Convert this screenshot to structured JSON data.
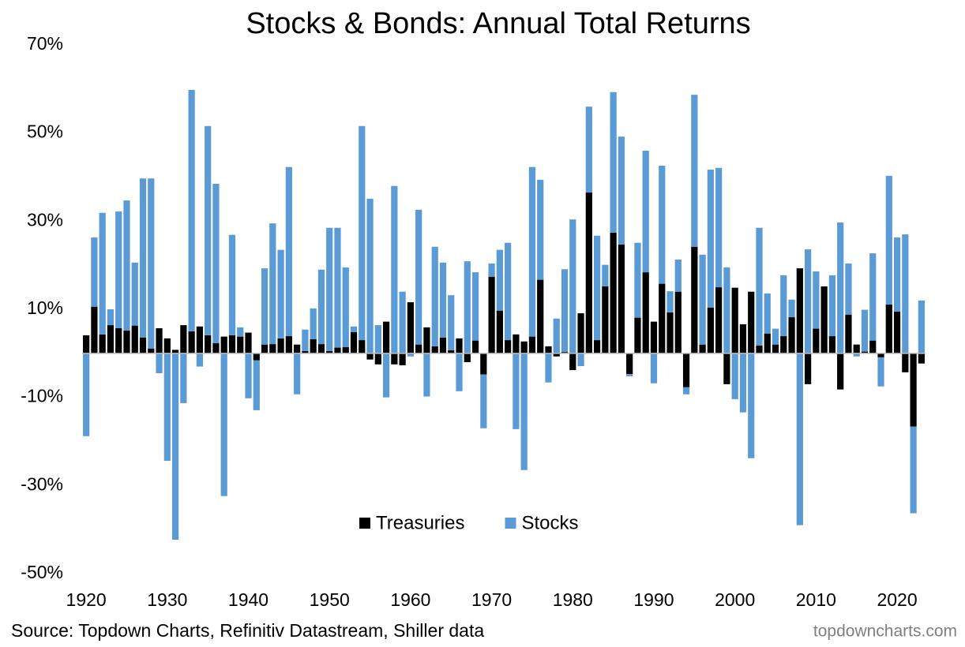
{
  "chart_data": {
    "type": "bar",
    "stacked": true,
    "title": "Stocks & Bonds: Annual Total Returns",
    "source": "Source: Topdown Charts, Refinitiv Datastream, Shiller data",
    "watermark": "topdowncharts.com",
    "x": [
      1920,
      1921,
      1922,
      1923,
      1924,
      1925,
      1926,
      1927,
      1928,
      1929,
      1930,
      1931,
      1932,
      1933,
      1934,
      1935,
      1936,
      1937,
      1938,
      1939,
      1940,
      1941,
      1942,
      1943,
      1944,
      1945,
      1946,
      1947,
      1948,
      1949,
      1950,
      1951,
      1952,
      1953,
      1954,
      1955,
      1956,
      1957,
      1958,
      1959,
      1960,
      1961,
      1962,
      1963,
      1964,
      1965,
      1966,
      1967,
      1968,
      1969,
      1970,
      1971,
      1972,
      1973,
      1974,
      1975,
      1976,
      1977,
      1978,
      1979,
      1980,
      1981,
      1982,
      1983,
      1984,
      1985,
      1986,
      1987,
      1988,
      1989,
      1990,
      1991,
      1992,
      1993,
      1994,
      1995,
      1996,
      1997,
      1998,
      1999,
      2000,
      2001,
      2002,
      2003,
      2004,
      2005,
      2006,
      2007,
      2008,
      2009,
      2010,
      2011,
      2012,
      2013,
      2014,
      2015,
      2016,
      2017,
      2018,
      2019,
      2020,
      2021,
      2022,
      2023
    ],
    "series": [
      {
        "name": "Treasuries",
        "color": "#000000",
        "values": [
          4.1,
          10.6,
          4.3,
          6.4,
          5.7,
          5.2,
          6.3,
          3.6,
          1.1,
          5.7,
          3.4,
          0.8,
          6.4,
          5.0,
          6.1,
          4.1,
          2.3,
          3.8,
          4.1,
          3.8,
          4.7,
          -1.6,
          2.0,
          2.1,
          3.4,
          3.9,
          2.0,
          0.5,
          3.2,
          2.1,
          0.5,
          1.3,
          1.4,
          4.8,
          3.0,
          -1.4,
          -2.5,
          7.2,
          -2.5,
          -2.7,
          11.6,
          2.0,
          5.9,
          1.6,
          3.6,
          0.7,
          3.4,
          -2.0,
          2.9,
          -4.8,
          17.4,
          9.7,
          3.0,
          4.3,
          2.7,
          3.8,
          16.7,
          1.6,
          -0.7,
          0.3,
          -3.8,
          9.1,
          36.5,
          3.0,
          15.2,
          27.4,
          24.7,
          -4.7,
          8.1,
          18.4,
          7.2,
          15.8,
          9.3,
          14.0,
          -7.7,
          24.2,
          2.0,
          10.4,
          15.0,
          -7.0,
          14.9,
          6.6,
          14.0,
          1.8,
          4.5,
          2.0,
          3.9,
          8.2,
          19.3,
          -7.0,
          5.6,
          15.2,
          3.9,
          -8.2,
          8.8,
          2.0,
          0.4,
          2.9,
          -0.9,
          11.1,
          9.5,
          -4.3,
          -16.6,
          -2.3
        ]
      },
      {
        "name": "Stocks",
        "color": "#5b9bd5",
        "values": [
          -18.8,
          15.7,
          27.6,
          3.6,
          26.5,
          29.5,
          14.3,
          36.1,
          38.6,
          -4.5,
          -24.4,
          -42.3,
          -11.3,
          54.8,
          -3.0,
          47.5,
          36.2,
          -32.4,
          22.8,
          2.1,
          -10.2,
          -11.3,
          17.3,
          27.4,
          20.1,
          38.4,
          -9.3,
          4.9,
          7.0,
          16.9,
          28.0,
          27.2,
          18.1,
          1.3,
          48.6,
          35.1,
          6.4,
          -10.0,
          38.0,
          14.0,
          -0.7,
          30.6,
          -9.8,
          22.6,
          17.0,
          12.5,
          -8.6,
          20.9,
          15.5,
          -12.2,
          3.0,
          13.8,
          22.1,
          -17.2,
          -26.5,
          38.5,
          22.7,
          -6.6,
          7.9,
          18.8,
          30.4,
          -2.9,
          19.5,
          23.7,
          4.9,
          31.9,
          24.5,
          -0.5,
          17.0,
          27.6,
          -6.8,
          26.8,
          4.8,
          7.3,
          -1.6,
          34.5,
          20.4,
          31.3,
          27.1,
          19.5,
          -10.4,
          -13.4,
          -23.8,
          26.7,
          9.1,
          3.6,
          13.8,
          4.0,
          -39.0,
          23.6,
          13.0,
          0,
          13.8,
          29.7,
          11.6,
          -0.7,
          9.5,
          19.8,
          -6.6,
          29.2,
          16.8,
          27.0,
          -19.7,
          12.0
        ]
      }
    ],
    "xlim": [
      1919.5,
      2023.5
    ],
    "xticks": [
      1920,
      1930,
      1940,
      1950,
      1960,
      1970,
      1980,
      1990,
      2000,
      2010,
      2020
    ],
    "ylim": [
      -50,
      70
    ],
    "yticks": [
      {
        "value": -50,
        "label": "-50%"
      },
      {
        "value": -30,
        "label": "-30%"
      },
      {
        "value": -10,
        "label": "-10%"
      },
      {
        "value": 10,
        "label": "10%"
      },
      {
        "value": 30,
        "label": "30%"
      },
      {
        "value": 50,
        "label": "50%"
      },
      {
        "value": 70,
        "label": "70%"
      }
    ],
    "grid": false,
    "legend": "bottom"
  }
}
